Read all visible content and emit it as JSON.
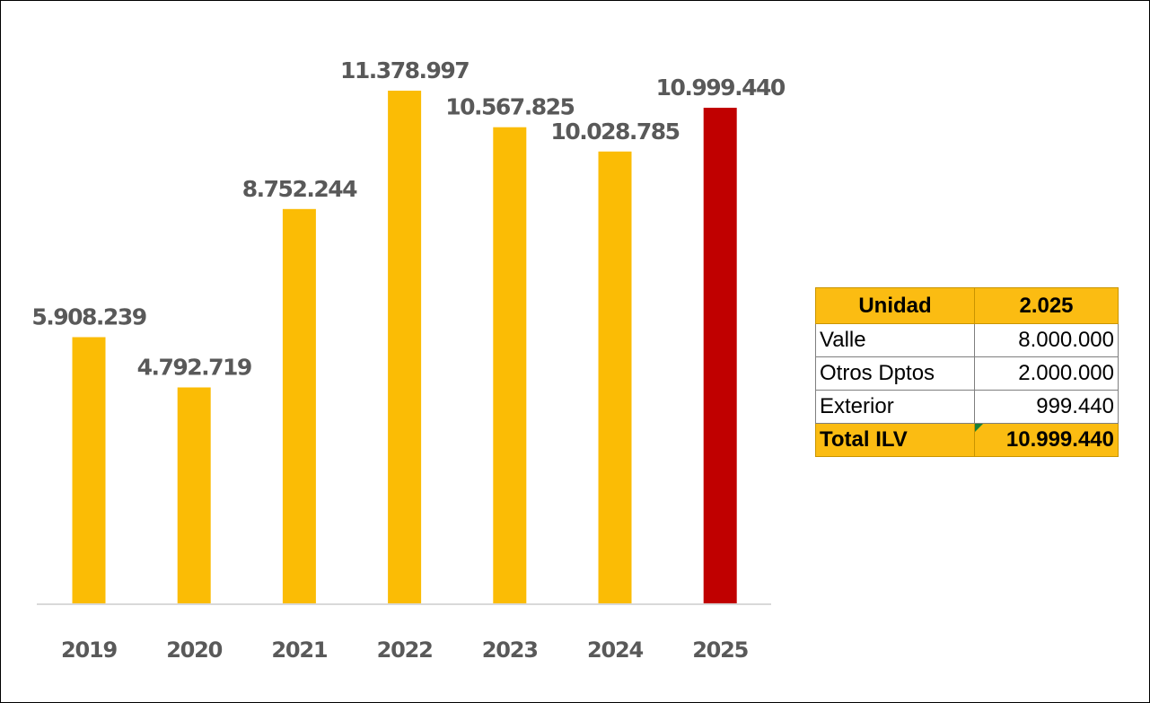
{
  "chart_data": {
    "type": "bar",
    "categories": [
      "2019",
      "2020",
      "2021",
      "2022",
      "2023",
      "2024",
      "2025"
    ],
    "values": [
      5908239,
      4792719,
      8752244,
      11378997,
      10567825,
      10028785,
      10999440
    ],
    "value_labels": [
      "5.908.239",
      "4.792.719",
      "8.752.244",
      "11.378.997",
      "10.567.825",
      "10.028.785",
      "10.999.440"
    ],
    "colors": [
      "#fbbc05",
      "#fbbc05",
      "#fbbc05",
      "#fbbc05",
      "#fbbc05",
      "#fbbc05",
      "#c00000"
    ],
    "ylim": [
      0,
      11378997
    ],
    "grid": false,
    "legend": "none",
    "title": "",
    "xlabel": "",
    "ylabel": ""
  },
  "table": {
    "headers": {
      "unit": "Unidad",
      "year": "2.025"
    },
    "rows": [
      {
        "unit": "Valle",
        "value": "8.000.000"
      },
      {
        "unit": "Otros Dptos",
        "value": "2.000.000"
      },
      {
        "unit": "Exterior",
        "value": "999.440"
      }
    ],
    "total": {
      "unit": "Total ILV",
      "value": "10.999.440"
    }
  },
  "colors": {
    "bar": "#fbbc05",
    "highlight_bar": "#c00000",
    "table_header": "#fbbc12",
    "axis": "#d9d9d9",
    "label_text": "#595959"
  }
}
